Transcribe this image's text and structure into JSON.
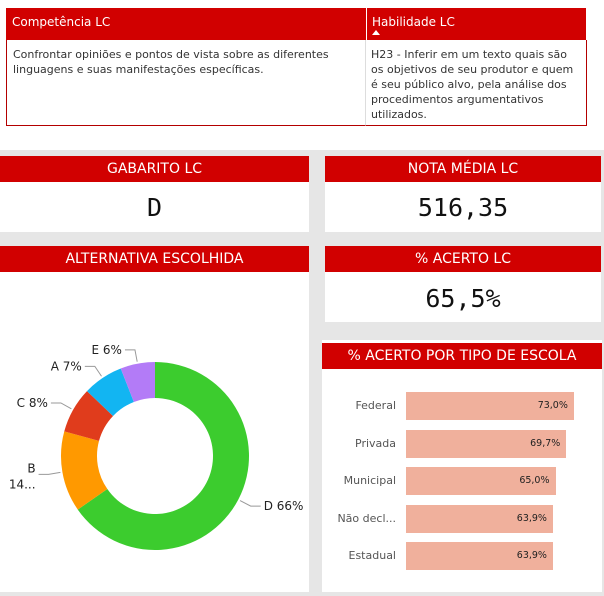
{
  "table": {
    "col1_header": "Competência LC",
    "col2_header": "Habilidade LC",
    "col1_text": "Confrontar opiniões e pontos de vista sobre as diferentes linguagens e suas manifestações específicas.",
    "col2_text": "H23 - Inferir em um texto quais são os objetivos de seu produtor e quem é seu público alvo, pela análise dos procedimentos argumentativos utilizados."
  },
  "cards": {
    "gabarito_title": "GABARITO LC",
    "gabarito_value": "D",
    "nota_title": "NOTA MÉDIA LC",
    "nota_value": "516,35",
    "acerto_title": "% ACERTO LC",
    "acerto_value": "65,5%"
  },
  "donut": {
    "title": "ALTERNATIVA ESCOLHIDA",
    "slices": [
      {
        "label": "D 66%",
        "value": 66,
        "color": "#3ccc2e"
      },
      {
        "label": "B 14...",
        "value": 14,
        "color": "#ff9900"
      },
      {
        "label": "C 8%",
        "value": 8,
        "color": "#e03c1c"
      },
      {
        "label": "A 7%",
        "value": 7,
        "color": "#12b5f2"
      },
      {
        "label": "E 6%",
        "value": 6,
        "color": "#b37bf7"
      }
    ]
  },
  "bars": {
    "title": "% ACERTO POR TIPO DE ESCOLA",
    "items": [
      {
        "label": "Federal",
        "value": 73.0,
        "text": "73,0%"
      },
      {
        "label": "Privada",
        "value": 69.7,
        "text": "69,7%"
      },
      {
        "label": "Municipal",
        "value": 65.0,
        "text": "65,0%"
      },
      {
        "label": "Não decl...",
        "value": 63.9,
        "text": "63,9%"
      },
      {
        "label": "Estadual",
        "value": 63.9,
        "text": "63,9%"
      }
    ],
    "bar_color": "#f0b09c"
  }
}
